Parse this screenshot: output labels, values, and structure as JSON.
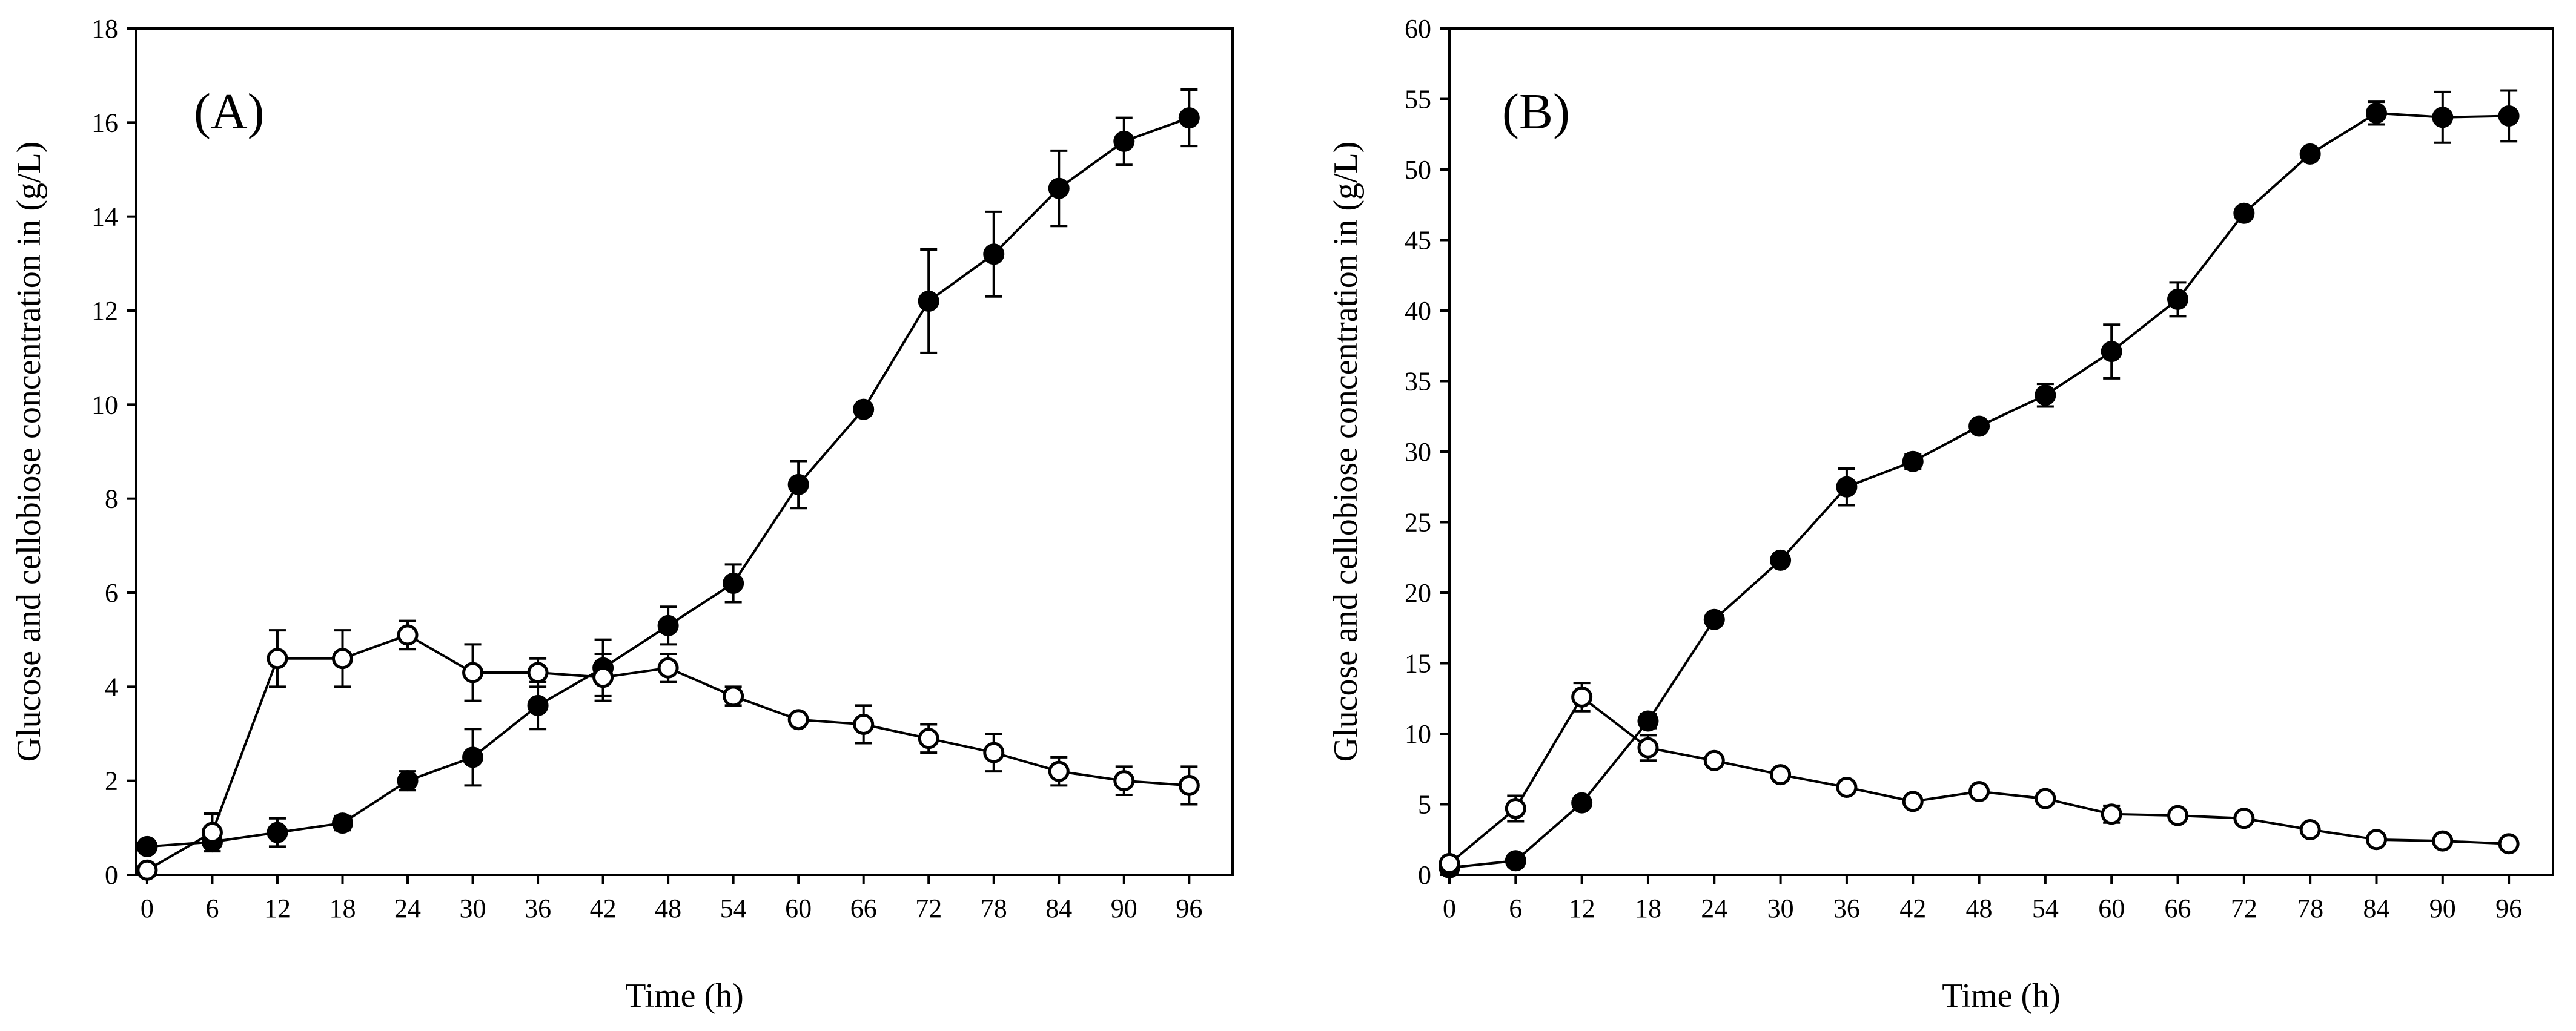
{
  "chart_data": [
    {
      "type": "line",
      "panel_label": "(A)",
      "xlabel": "Time (h)",
      "ylabel": "Glucose and cellobiose concentration in (g/L)",
      "xlim": [
        -1,
        100
      ],
      "ylim": [
        0,
        18
      ],
      "xticks": [
        0,
        6,
        12,
        18,
        24,
        30,
        36,
        42,
        48,
        54,
        60,
        66,
        72,
        78,
        84,
        90,
        96
      ],
      "yticks": [
        0,
        2,
        4,
        6,
        8,
        10,
        12,
        14,
        16,
        18
      ],
      "series": [
        {
          "name": "filled",
          "marker": "filled-circle",
          "x": [
            0,
            6,
            12,
            18,
            24,
            30,
            36,
            42,
            48,
            54,
            60,
            66,
            72,
            78,
            84,
            90,
            96
          ],
          "y": [
            0.6,
            0.7,
            0.9,
            1.1,
            2.0,
            2.5,
            3.6,
            4.4,
            5.3,
            6.2,
            8.3,
            9.9,
            12.2,
            13.2,
            14.6,
            15.6,
            16.1
          ],
          "err": [
            0.1,
            0.1,
            0.3,
            0.15,
            0.2,
            0.6,
            0.5,
            0.6,
            0.4,
            0.4,
            0.5,
            0.1,
            1.1,
            0.9,
            0.8,
            0.5,
            0.6
          ]
        },
        {
          "name": "open",
          "marker": "open-circle",
          "x": [
            0,
            6,
            12,
            18,
            24,
            30,
            36,
            42,
            48,
            54,
            60,
            66,
            72,
            78,
            84,
            90,
            96
          ],
          "y": [
            0.1,
            0.9,
            4.6,
            4.6,
            5.1,
            4.3,
            4.3,
            4.2,
            4.4,
            3.8,
            3.3,
            3.2,
            2.9,
            2.6,
            2.2,
            2.0,
            1.9
          ],
          "err": [
            0.05,
            0.4,
            0.6,
            0.6,
            0.3,
            0.6,
            0.3,
            0.5,
            0.3,
            0.2,
            0.1,
            0.4,
            0.3,
            0.4,
            0.3,
            0.3,
            0.4
          ]
        }
      ]
    },
    {
      "type": "line",
      "panel_label": "(B)",
      "xlabel": "Time (h)",
      "ylabel": "Glucose and cellobiose concentration in (g/L)",
      "xlim": [
        0,
        100
      ],
      "ylim": [
        0,
        60
      ],
      "xticks": [
        0,
        6,
        12,
        18,
        24,
        30,
        36,
        42,
        48,
        54,
        60,
        66,
        72,
        78,
        84,
        90,
        96
      ],
      "yticks": [
        0,
        5,
        10,
        15,
        20,
        25,
        30,
        35,
        40,
        45,
        50,
        55,
        60
      ],
      "series": [
        {
          "name": "filled",
          "marker": "filled-circle",
          "x": [
            0,
            6,
            12,
            18,
            24,
            30,
            36,
            42,
            48,
            54,
            60,
            66,
            72,
            78,
            84,
            90,
            96
          ],
          "y": [
            0.5,
            1.0,
            5.1,
            10.9,
            18.1,
            22.3,
            27.5,
            29.3,
            31.8,
            34.0,
            37.1,
            40.8,
            46.9,
            51.1,
            54.0,
            53.7,
            53.8
          ],
          "err": [
            0.3,
            0.4,
            0.3,
            0.5,
            0.3,
            0.3,
            1.3,
            0.5,
            0.3,
            0.8,
            1.9,
            1.2,
            0.4,
            0.3,
            0.8,
            1.8,
            1.8
          ]
        },
        {
          "name": "open",
          "marker": "open-circle",
          "x": [
            0,
            6,
            12,
            18,
            24,
            30,
            36,
            42,
            48,
            54,
            60,
            66,
            72,
            78,
            84,
            90,
            96
          ],
          "y": [
            0.8,
            4.7,
            12.6,
            9.0,
            8.1,
            7.1,
            6.2,
            5.2,
            5.9,
            5.4,
            4.3,
            4.2,
            4.0,
            3.2,
            2.5,
            2.4,
            2.2
          ],
          "err": [
            0.3,
            0.9,
            1.0,
            0.9,
            0.4,
            0.3,
            0.3,
            0.3,
            0.3,
            0.3,
            0.6,
            0.4,
            0.3,
            0.3,
            0.2,
            0.2,
            0.2
          ]
        }
      ]
    }
  ]
}
